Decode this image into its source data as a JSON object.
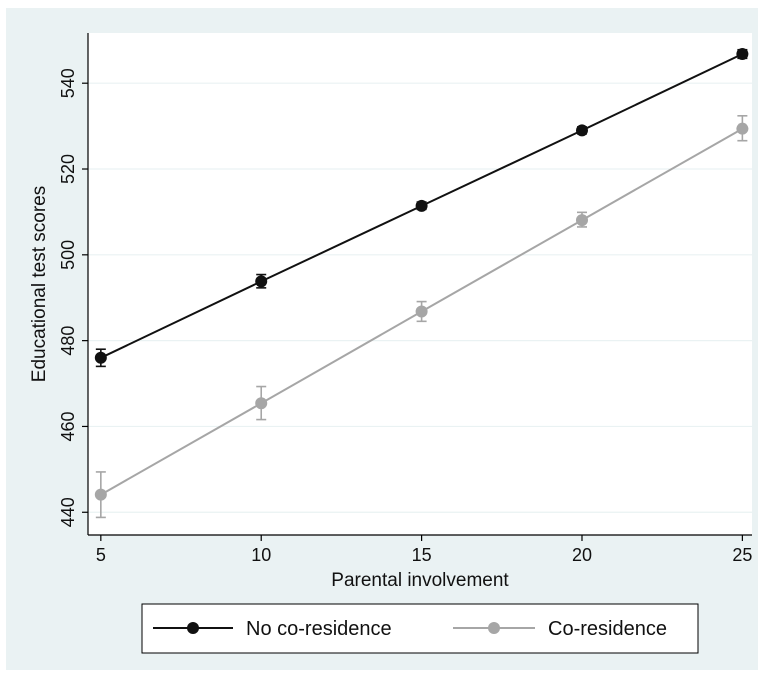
{
  "chart_data": {
    "type": "line",
    "title": "",
    "xlabel": "Parental involvement",
    "ylabel": "Educational test scores",
    "x": [
      5,
      10,
      15,
      20,
      25
    ],
    "x_ticks": [
      5,
      10,
      15,
      20,
      25
    ],
    "y_ticks": [
      440,
      460,
      480,
      500,
      520,
      540
    ],
    "xlim": [
      4.6,
      25.3
    ],
    "ylim": [
      434.7,
      551.7
    ],
    "grid": "horizontal",
    "legend_position": "bottom",
    "series": [
      {
        "name": "No co-residence",
        "color": "#111111",
        "values": [
          476.0,
          493.8,
          511.4,
          529.0,
          546.8
        ],
        "ci_lower": [
          474.0,
          492.3,
          510.6,
          528.2,
          545.8
        ],
        "ci_upper": [
          478.0,
          495.4,
          512.3,
          529.8,
          547.8
        ]
      },
      {
        "name": "Co-residence",
        "color": "#a6a6a6",
        "values": [
          444.1,
          465.4,
          486.8,
          508.1,
          529.4
        ],
        "ci_lower": [
          438.8,
          461.6,
          484.5,
          506.5,
          526.6
        ],
        "ci_upper": [
          449.4,
          469.3,
          489.1,
          509.9,
          532.4
        ]
      }
    ]
  },
  "colors": {
    "panel_background": "#eaf2f3",
    "plot_background": "#ffffff",
    "gridline": "#eaf2f3",
    "axis": "#000000"
  }
}
